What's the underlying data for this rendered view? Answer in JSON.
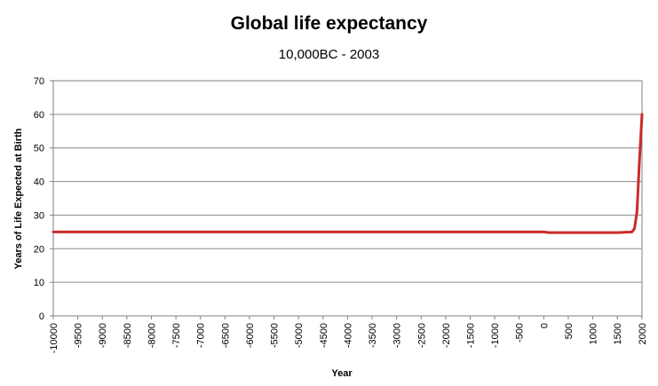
{
  "chart_data": {
    "type": "line",
    "title": "Global life expectancy",
    "subtitle": "10,000BC - 2003",
    "xlabel": "Year",
    "ylabel": "Years of Life Expected at Birth",
    "xlim": [
      -10000,
      2003
    ],
    "ylim": [
      0,
      70
    ],
    "xticks": [
      -10000,
      -9500,
      -9000,
      -8500,
      -8000,
      -7500,
      -7000,
      -6500,
      -6000,
      -5500,
      -5000,
      -4500,
      -4000,
      -3500,
      -3000,
      -2500,
      -2000,
      -1500,
      -1000,
      -500,
      0,
      500,
      1000,
      1500,
      2000
    ],
    "yticks": [
      0,
      10,
      20,
      30,
      40,
      50,
      60,
      70
    ],
    "grid": "horizontal",
    "legend": "none",
    "series": [
      {
        "color": "#cc2a2a",
        "points": [
          {
            "x": -10000,
            "y": 25
          },
          {
            "x": 0,
            "y": 25
          },
          {
            "x": 100,
            "y": 24.8
          },
          {
            "x": 1000,
            "y": 24.8
          },
          {
            "x": 1500,
            "y": 24.8
          },
          {
            "x": 1800,
            "y": 25
          },
          {
            "x": 1850,
            "y": 26
          },
          {
            "x": 1900,
            "y": 31
          },
          {
            "x": 1950,
            "y": 46
          },
          {
            "x": 2003,
            "y": 60
          }
        ]
      }
    ]
  }
}
